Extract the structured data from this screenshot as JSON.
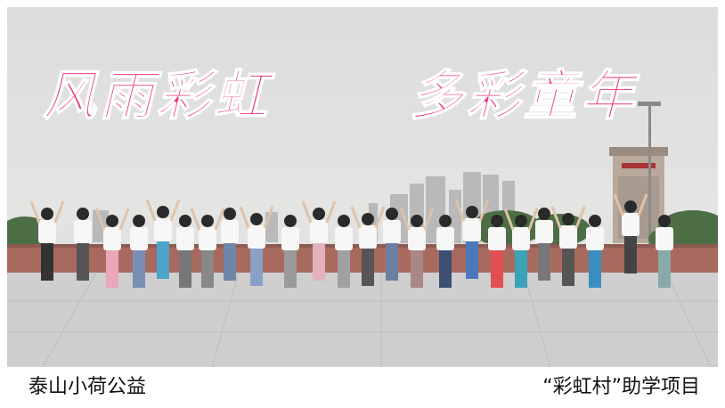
{
  "poster": {
    "title_left": "风雨彩虹",
    "title_right": "多彩童年",
    "caption_left": "泰山小荷公益",
    "caption_right": "“彩虹村”助学项目"
  },
  "colors": {
    "title": "#ec2f7f",
    "sky": "#dcdcdc",
    "plaza": "#cfcfcf",
    "brick_wall": "#a86a5e"
  },
  "icons": [
    "photo-people-jumping"
  ]
}
